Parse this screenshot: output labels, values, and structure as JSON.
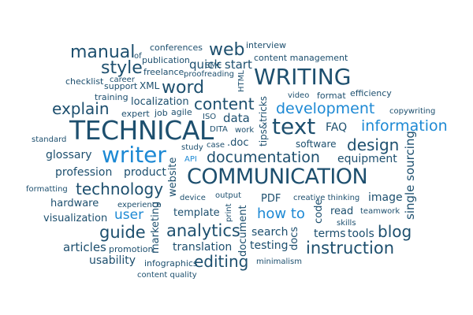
{
  "colors": {
    "dark": "#1d4f6e",
    "accent": "#1d89d4"
  },
  "words": {
    "manual": "manual",
    "conferences": "conferences",
    "web": "web",
    "interview": "interview",
    "of": "of",
    "publication": "publication",
    "sme": "SME",
    "content_management": "content management",
    "style": "style",
    "freelance": "freelance",
    "quick_start": "quick start",
    "writing": "WRITING",
    "career": "career",
    "proofreading": "proofreading",
    "checklist": "checklist",
    "support": "support",
    "xml": "XML",
    "html": "HTML",
    "video": "video",
    "format": "format",
    "efficiency": "efficiency",
    "word": "word",
    "training": "training",
    "explain": "explain",
    "localization": "localization",
    "content": "content",
    "tips_tricks": "tips&tricks",
    "development": "development",
    "copywriting": "copywriting",
    "expert": "expert",
    "job": "job",
    "agile": "agile",
    "iso": "ISO",
    "data": "data",
    "text": "text",
    "information": "information",
    "faq": "FAQ",
    "technical": "TECHNICAL",
    "dita": "DITA",
    "work": "work",
    "standard": "standard",
    "doc": ".doc",
    "software": "software",
    "design": "design",
    "study": "study",
    "case": "case",
    "glossary": "glossary",
    "writer": "writer",
    "documentation": "documentation",
    "api": "API",
    "equipment": "equipment",
    "single_sourcing": "single sourcing",
    "profession": "profession",
    "product": "product",
    "website": "website",
    "communication": "COMMUNICATION",
    "formatting": "formatting",
    "technology": "technology",
    "device": "device",
    "output": "output",
    "pdf": "PDF",
    "creative_thinking": "creative thinking",
    "image": "image",
    "hardware": "hardware",
    "experience": "experience",
    "print": "print",
    "code": "code",
    "how_to": "how to",
    "read": "read",
    "teamwork": "teamwork",
    "user": "user",
    "template": "template",
    "visualization": "visualization",
    "skills": "skills",
    "guide": "guide",
    "marketing": "marketing",
    "analytics": "analytics",
    "document": "document",
    "search": "search",
    "docs": "docs",
    "terms": "terms",
    "tools": "tools",
    "blog": "blog",
    "articles": "articles",
    "promotion": "promotion",
    "translation": "translation",
    "testing": "testing",
    "instruction": "instruction",
    "usability": "usability",
    "infographics": "infographics",
    "editing": "editing",
    "minimalism": "minimalism",
    "content_quality": "content quality"
  }
}
